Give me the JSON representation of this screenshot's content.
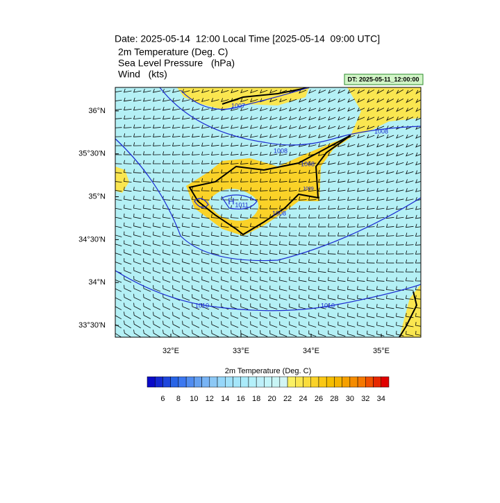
{
  "header": {
    "title": "Date: 2025-05-14  12:00 Local Time [2025-05-14  09:00 UTC]",
    "lines": [
      "2m Temperature (Deg. C)",
      "Sea Level Pressure   (hPa)",
      "Wind   (kts)"
    ],
    "dt_label": "DT: 2025-05-11_12:00:00"
  },
  "map": {
    "xlim": [
      31.208,
      35.564
    ],
    "ylim": [
      33.363,
      36.274
    ],
    "lon_ticks": [
      {
        "value": 32,
        "label": "32°E"
      },
      {
        "value": 33,
        "label": "33°E"
      },
      {
        "value": 34,
        "label": "34°E"
      },
      {
        "value": 35,
        "label": "35°E"
      }
    ],
    "lat_ticks": [
      {
        "value": 36,
        "label": "36°N"
      },
      {
        "value": 35.5,
        "label": "35°30'N"
      },
      {
        "value": 35,
        "label": "35°N"
      },
      {
        "value": 34.5,
        "label": "34°30'N"
      },
      {
        "value": 34,
        "label": "34°N"
      },
      {
        "value": 33.5,
        "label": "33°30'N"
      }
    ],
    "contour_labels": [
      "1007",
      "1008",
      "1008",
      "1008",
      "1009",
      "H",
      "1011",
      "1008",
      "1010",
      "1010"
    ]
  },
  "colorbar": {
    "title": "2m Temperature (Deg. C)",
    "range": [
      4,
      35
    ],
    "ticks": [
      6,
      8,
      10,
      12,
      14,
      16,
      18,
      20,
      22,
      24,
      26,
      28,
      30,
      32,
      34
    ],
    "colors": [
      "#0a0ac8",
      "#1428d2",
      "#1e46dc",
      "#2864e6",
      "#3c78f0",
      "#508cf0",
      "#64a0f0",
      "#78b4f5",
      "#8cc8f5",
      "#96d7fa",
      "#a0e1fa",
      "#a5e6fa",
      "#aaebfa",
      "#b4f0fa",
      "#bef0fa",
      "#c3f5fa",
      "#c8f5f5",
      "#d2f5f5",
      "#faf064",
      "#fae650",
      "#fadc3c",
      "#fad228",
      "#fac814",
      "#f5be00",
      "#f5b400",
      "#f5a000",
      "#f58c00",
      "#f57800",
      "#f05000",
      "#e62800",
      "#e10000"
    ]
  }
}
